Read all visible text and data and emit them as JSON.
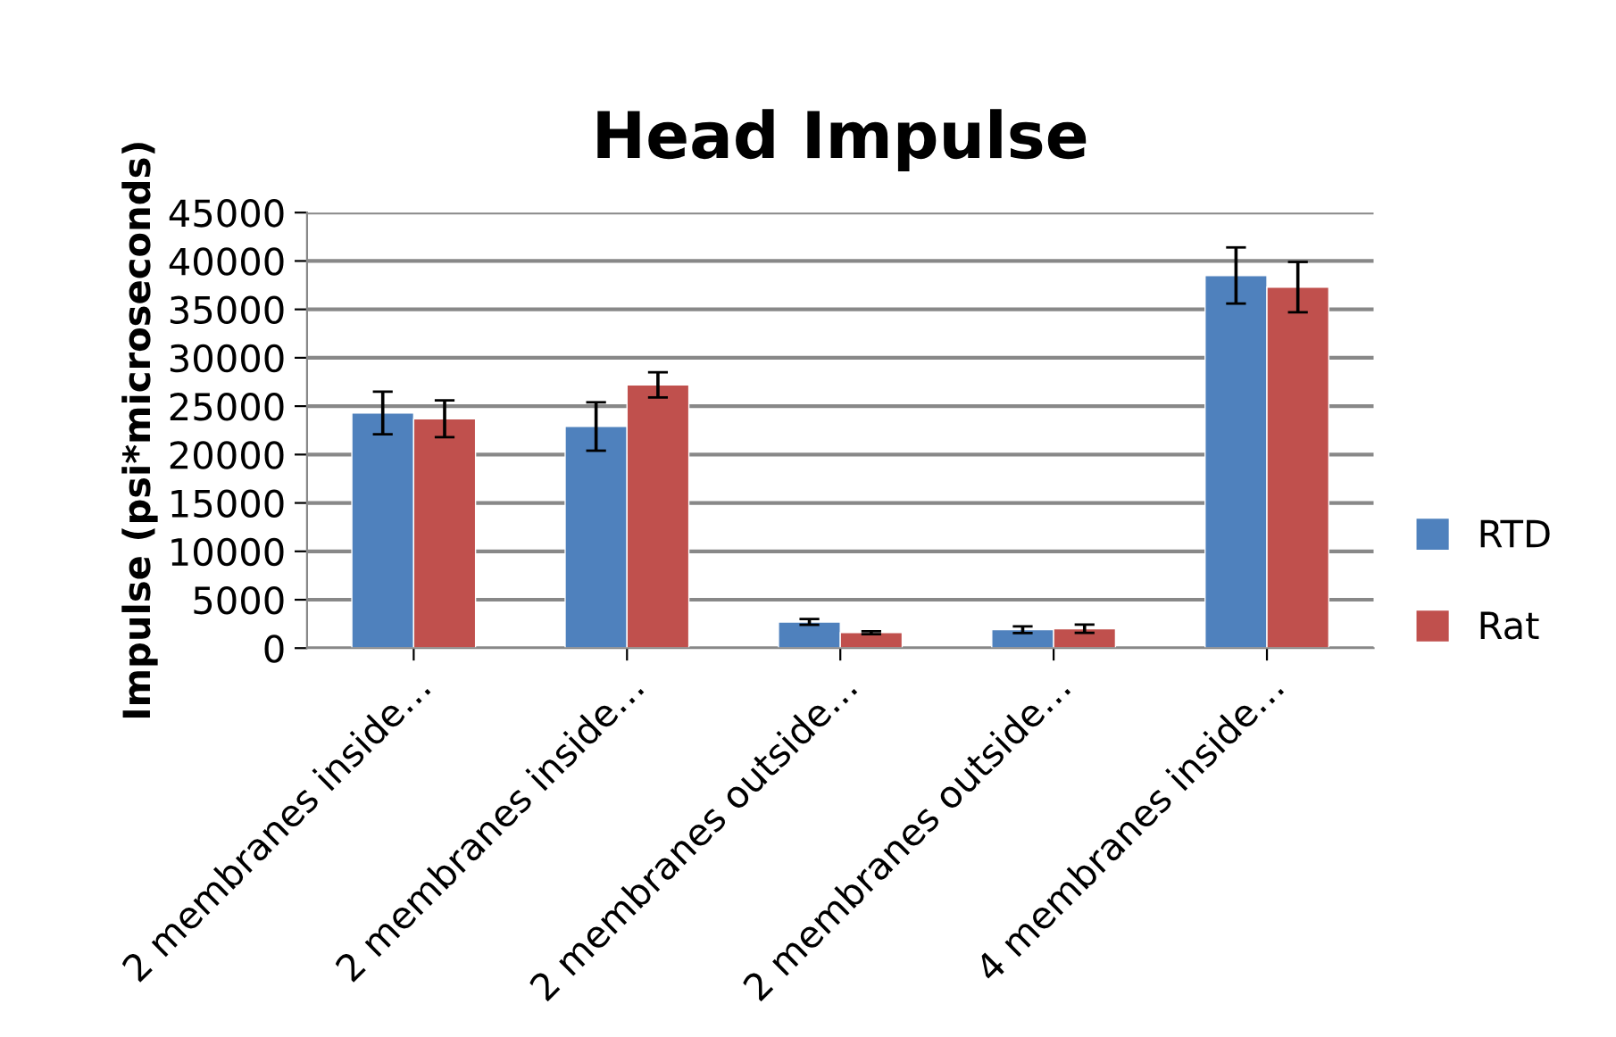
{
  "chart_data": {
    "type": "bar",
    "title": "Head Impulse",
    "ylabel": "Impulse (psi*microseconds)",
    "categories": [
      "2 membranes inside…",
      "2 membranes inside…",
      "2 membranes outside…",
      "2 membranes outside…",
      "4 membranes inside…"
    ],
    "series": [
      {
        "name": "RTD",
        "color": "#4f81bd",
        "values": [
          24300,
          22900,
          2700,
          1900,
          38500
        ],
        "errors": [
          2200,
          2500,
          300,
          340,
          2900
        ]
      },
      {
        "name": "Rat",
        "color": "#c0504d",
        "values": [
          23700,
          27200,
          1600,
          2000,
          37300
        ],
        "errors": [
          1900,
          1300,
          150,
          430,
          2600
        ]
      }
    ],
    "ylim": [
      0,
      45000
    ],
    "yticks": [
      0,
      5000,
      10000,
      15000,
      20000,
      25000,
      30000,
      35000,
      40000,
      45000
    ],
    "grid": "y",
    "legend": "right"
  }
}
